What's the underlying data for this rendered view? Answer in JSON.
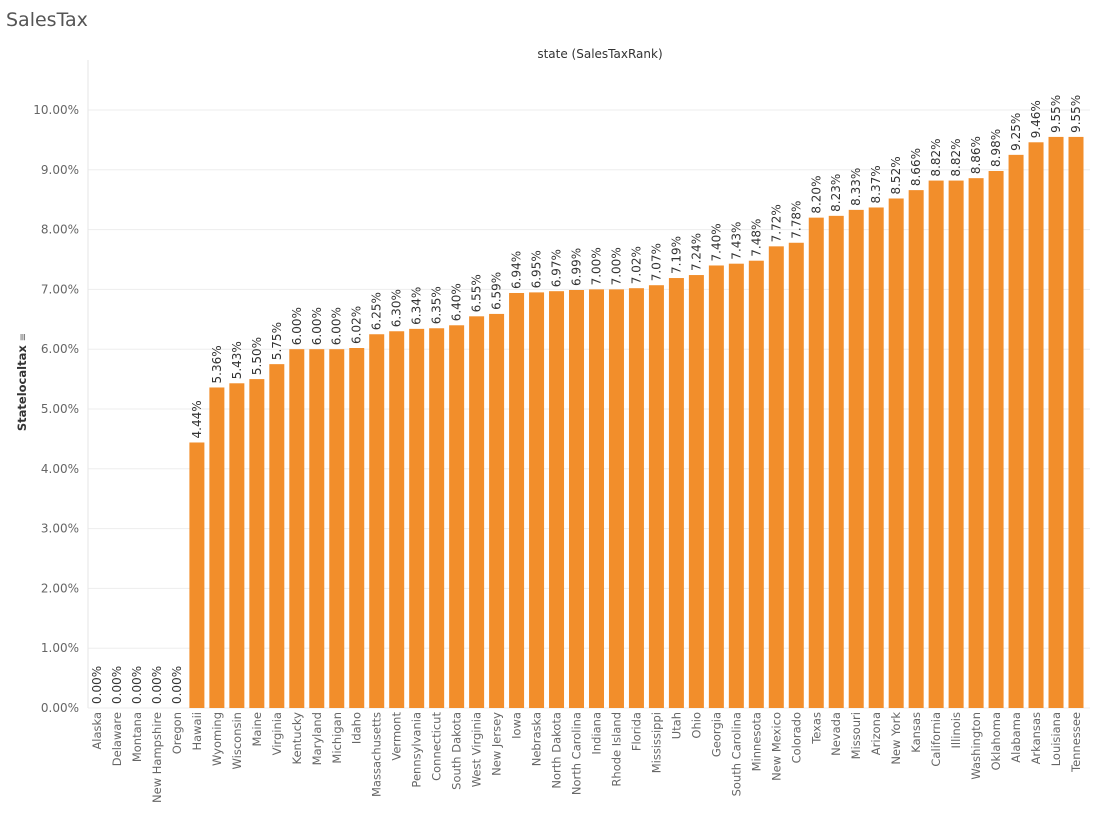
{
  "page": {
    "title": "SalesTax"
  },
  "chart_data": {
    "type": "bar",
    "title": "",
    "x_header": "state (SalesTaxRank)",
    "ylabel": "Statelocaltax",
    "xlabel": "",
    "ylim": [
      0,
      0.105
    ],
    "y_ticks": [
      0,
      0.01,
      0.02,
      0.03,
      0.04,
      0.05,
      0.06,
      0.07,
      0.08,
      0.09,
      0.1
    ],
    "y_tick_labels": [
      "0.00%",
      "1.00%",
      "2.00%",
      "3.00%",
      "4.00%",
      "5.00%",
      "6.00%",
      "7.00%",
      "8.00%",
      "9.00%",
      "10.00%"
    ],
    "grid": "horizontal",
    "bar_color": "#F28E2B",
    "sort_icon": "sort-descending-icon",
    "categories": [
      "Alaska",
      "Delaware",
      "Montana",
      "New Hampshire",
      "Oregon",
      "Hawaii",
      "Wyoming",
      "Wisconsin",
      "Maine",
      "Virginia",
      "Kentucky",
      "Maryland",
      "Michigan",
      "Idaho",
      "Massachusetts",
      "Vermont",
      "Pennsylvania",
      "Connecticut",
      "South Dakota",
      "West Virginia",
      "New Jersey",
      "Iowa",
      "Nebraska",
      "North Dakota",
      "North Carolina",
      "Indiana",
      "Rhode Island",
      "Florida",
      "Mississippi",
      "Utah",
      "Ohio",
      "Georgia",
      "South Carolina",
      "Minnesota",
      "New Mexico",
      "Colorado",
      "Texas",
      "Nevada",
      "Missouri",
      "Arizona",
      "New York",
      "Kansas",
      "California",
      "Illinois",
      "Washington",
      "Oklahoma",
      "Alabama",
      "Arkansas",
      "Louisiana",
      "Tennessee"
    ],
    "values": [
      0,
      0,
      0,
      0,
      0,
      0.0444,
      0.0536,
      0.0543,
      0.055,
      0.0575,
      0.06,
      0.06,
      0.06,
      0.0602,
      0.0625,
      0.063,
      0.0634,
      0.0635,
      0.064,
      0.0655,
      0.0659,
      0.0694,
      0.0695,
      0.0697,
      0.0699,
      0.07,
      0.07,
      0.0702,
      0.0707,
      0.0719,
      0.0724,
      0.074,
      0.0743,
      0.0748,
      0.0772,
      0.0778,
      0.082,
      0.0823,
      0.0833,
      0.0837,
      0.0852,
      0.0866,
      0.0882,
      0.0882,
      0.0886,
      0.0898,
      0.0925,
      0.0946,
      0.0955,
      0.0955
    ],
    "value_labels": [
      "0.00%",
      "0.00%",
      "0.00%",
      "0.00%",
      "0.00%",
      "4.44%",
      "5.36%",
      "5.43%",
      "5.50%",
      "5.75%",
      "6.00%",
      "6.00%",
      "6.00%",
      "6.02%",
      "6.25%",
      "6.30%",
      "6.34%",
      "6.35%",
      "6.40%",
      "6.55%",
      "6.59%",
      "6.94%",
      "6.95%",
      "6.97%",
      "6.99%",
      "7.00%",
      "7.00%",
      "7.02%",
      "7.07%",
      "7.19%",
      "7.24%",
      "7.40%",
      "7.43%",
      "7.48%",
      "7.72%",
      "7.78%",
      "8.20%",
      "8.23%",
      "8.33%",
      "8.37%",
      "8.52%",
      "8.66%",
      "8.82%",
      "8.82%",
      "8.86%",
      "8.98%",
      "9.25%",
      "9.46%",
      "9.55%",
      "9.55%"
    ]
  }
}
